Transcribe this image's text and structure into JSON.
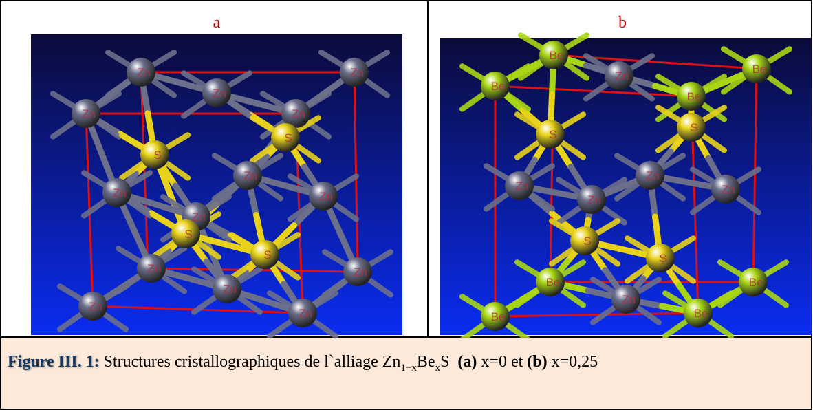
{
  "panels": [
    {
      "label": "a",
      "atoms": [
        {
          "label": "Zn",
          "color": "#6b6f8a"
        },
        {
          "label": "Zn",
          "color": "#6b6f8a"
        },
        {
          "label": "Zn",
          "color": "#6b6f8a"
        },
        {
          "label": "Zn",
          "color": "#6b6f8a"
        },
        {
          "label": "Zn",
          "color": "#6b6f8a"
        },
        {
          "label": "S",
          "color": "#e8d21a"
        },
        {
          "label": "S",
          "color": "#e8d21a"
        },
        {
          "label": "Zn",
          "color": "#6b6f8a"
        },
        {
          "label": "Zn",
          "color": "#6b6f8a"
        },
        {
          "label": "Zn",
          "color": "#6b6f8a"
        },
        {
          "label": "Zn",
          "color": "#6b6f8a"
        },
        {
          "label": "S",
          "color": "#e8d21a"
        },
        {
          "label": "S",
          "color": "#e8d21a"
        },
        {
          "label": "Zn",
          "color": "#6b6f8a"
        },
        {
          "label": "Zn",
          "color": "#6b6f8a"
        },
        {
          "label": "Zn",
          "color": "#6b6f8a"
        },
        {
          "label": "Zn",
          "color": "#6b6f8a"
        },
        {
          "label": "Zn",
          "color": "#6b6f8a"
        }
      ]
    },
    {
      "label": "b",
      "atoms": [
        {
          "label": "Be",
          "color": "#a8d614"
        },
        {
          "label": "Zn",
          "color": "#6b6f8a"
        },
        {
          "label": "Be",
          "color": "#a8d614"
        },
        {
          "label": "Be",
          "color": "#a8d614"
        },
        {
          "label": "Be",
          "color": "#a8d614"
        },
        {
          "label": "S",
          "color": "#e8d21a"
        },
        {
          "label": "S",
          "color": "#e8d21a"
        },
        {
          "label": "Zn",
          "color": "#6b6f8a"
        },
        {
          "label": "Zn",
          "color": "#6b6f8a"
        },
        {
          "label": "Zn",
          "color": "#6b6f8a"
        },
        {
          "label": "Zn",
          "color": "#6b6f8a"
        },
        {
          "label": "S",
          "color": "#e8d21a"
        },
        {
          "label": "S",
          "color": "#e8d21a"
        },
        {
          "label": "Be",
          "color": "#a8d614"
        },
        {
          "label": "Zn",
          "color": "#6b6f8a"
        },
        {
          "label": "Be",
          "color": "#a8d614"
        },
        {
          "label": "Be",
          "color": "#a8d614"
        },
        {
          "label": "Be",
          "color": "#a8d614"
        }
      ]
    }
  ],
  "caption": {
    "figure": "Figure III. 1:",
    "text": " Structures cristallographiques de l`alliage Zn",
    "sub1": "1−x",
    "be": "Be",
    "sub2": "x",
    "s": "S  ",
    "a": "(a)",
    "mid": " x=0 et ",
    "b": "(b)",
    "end": " x=0,25"
  }
}
